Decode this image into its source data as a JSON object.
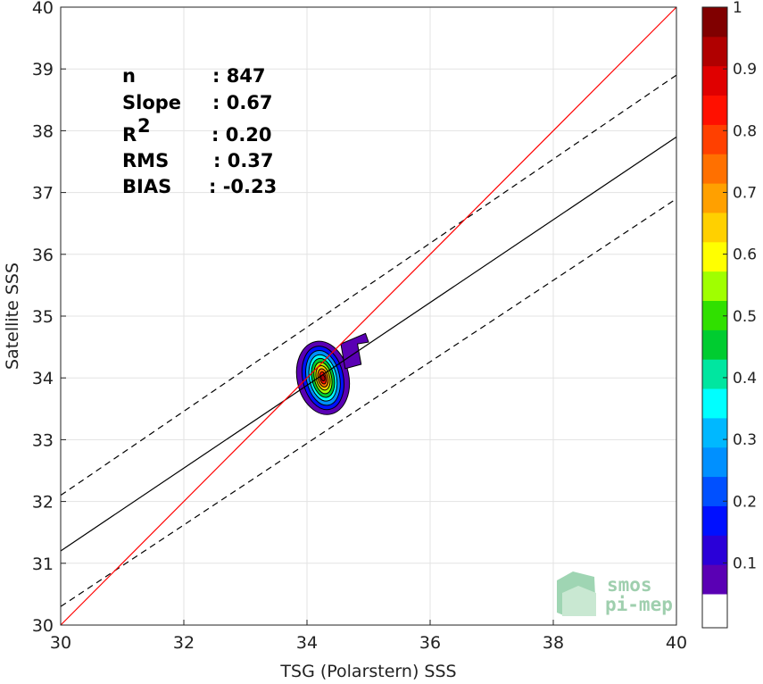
{
  "chart_data": {
    "type": "contour-scatter",
    "xlabel": "TSG (Polarstern) SSS",
    "ylabel": "Satellite SSS",
    "xlim": [
      30,
      40
    ],
    "ylim": [
      30,
      40
    ],
    "xticks": [
      "30",
      "32",
      "34",
      "36",
      "38",
      "40"
    ],
    "yticks": [
      "30",
      "31",
      "32",
      "33",
      "34",
      "35",
      "36",
      "37",
      "38",
      "39",
      "40"
    ],
    "grid": true,
    "stats": [
      {
        "name": "n",
        "value": ": 847"
      },
      {
        "name": "Slope",
        "value": ": 0.67"
      },
      {
        "name": "R",
        "sup": "2",
        "value": ": 0.20"
      },
      {
        "name": "RMS",
        "value": ": 0.37"
      },
      {
        "name": "BIAS",
        "value": ": -0.23"
      }
    ],
    "lines": {
      "one_to_one": {
        "color": "#ff0000",
        "points": [
          [
            30,
            30
          ],
          [
            40,
            40
          ]
        ]
      },
      "regression": {
        "color": "#000000",
        "style": "solid",
        "points": [
          [
            30,
            31.2
          ],
          [
            40,
            37.9
          ]
        ]
      },
      "upper_bound": {
        "color": "#000000",
        "style": "dashed",
        "points": [
          [
            30,
            32.1
          ],
          [
            40,
            38.9
          ]
        ]
      },
      "lower_bound": {
        "color": "#000000",
        "style": "dashed",
        "points": [
          [
            30,
            30.3
          ],
          [
            40,
            36.9
          ]
        ]
      }
    },
    "density_center": [
      34.26,
      34.0
    ],
    "density_contours": [
      {
        "level": 0.05,
        "rx": 0.42,
        "ry": 0.6
      },
      {
        "level": 0.15,
        "rx": 0.33,
        "ry": 0.52
      },
      {
        "level": 0.25,
        "rx": 0.27,
        "ry": 0.45
      },
      {
        "level": 0.35,
        "rx": 0.22,
        "ry": 0.38
      },
      {
        "level": 0.45,
        "rx": 0.18,
        "ry": 0.32
      },
      {
        "level": 0.55,
        "rx": 0.14,
        "ry": 0.26
      },
      {
        "level": 0.65,
        "rx": 0.11,
        "ry": 0.2
      },
      {
        "level": 0.75,
        "rx": 0.08,
        "ry": 0.15
      },
      {
        "level": 0.85,
        "rx": 0.05,
        "ry": 0.1
      },
      {
        "level": 0.95,
        "rx": 0.03,
        "ry": 0.05
      }
    ],
    "colorbar": {
      "ticks": [
        "0.1",
        "0.2",
        "0.3",
        "0.4",
        "0.5",
        "0.6",
        "0.7",
        "0.8",
        "0.9",
        "1"
      ],
      "colors": [
        "#5a00b4",
        "#2a00d8",
        "#0010ff",
        "#0050ff",
        "#0090ff",
        "#00b8ff",
        "#00ffff",
        "#00e6a0",
        "#00cc30",
        "#30e000",
        "#a0ff00",
        "#ffff00",
        "#ffd000",
        "#ffa000",
        "#ff7000",
        "#ff4000",
        "#ff1000",
        "#e00000",
        "#b00000",
        "#800000"
      ]
    }
  },
  "logo": {
    "line1": "smos",
    "line2": "pi-mep"
  }
}
